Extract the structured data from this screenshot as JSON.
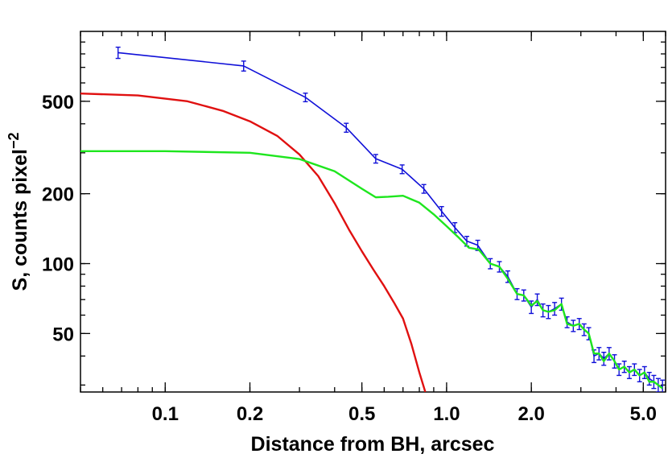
{
  "chart_data": {
    "type": "line",
    "xlabel": "Distance from BH, arcsec",
    "ylabel_main": "S, counts pixel",
    "ylabel_sup": "−2",
    "xscale": "log",
    "yscale": "log",
    "xlim": [
      0.05,
      6.0
    ],
    "ylim": [
      28,
      1000
    ],
    "grid": false,
    "xticks": [
      {
        "value": 0.1,
        "label": "0.1"
      },
      {
        "value": 0.2,
        "label": "0.2"
      },
      {
        "value": 0.5,
        "label": "0.5"
      },
      {
        "value": 1.0,
        "label": "1.0"
      },
      {
        "value": 2.0,
        "label": "2.0"
      },
      {
        "value": 5.0,
        "label": "5.0"
      }
    ],
    "yticks": [
      {
        "value": 50,
        "label": "50"
      },
      {
        "value": 100,
        "label": "100"
      },
      {
        "value": 200,
        "label": "200"
      },
      {
        "value": 500,
        "label": "500"
      }
    ],
    "series": [
      {
        "color": "#1010d8",
        "errorbars": true,
        "points": [
          [
            0.068,
            810,
            45
          ],
          [
            0.19,
            710,
            35
          ],
          [
            0.315,
            520,
            22
          ],
          [
            0.44,
            385,
            17
          ],
          [
            0.56,
            283,
            12
          ],
          [
            0.695,
            255,
            11
          ],
          [
            0.83,
            210,
            9
          ],
          [
            0.96,
            168,
            8
          ],
          [
            1.07,
            143,
            7
          ],
          [
            1.18,
            125,
            6
          ],
          [
            1.29,
            120,
            6
          ],
          [
            1.43,
            100,
            5
          ],
          [
            1.54,
            97,
            5
          ],
          [
            1.65,
            88,
            5
          ],
          [
            1.78,
            74,
            4
          ],
          [
            1.88,
            73,
            4
          ],
          [
            2.0,
            65,
            4
          ],
          [
            2.1,
            70,
            4
          ],
          [
            2.2,
            63,
            4
          ],
          [
            2.3,
            62,
            4
          ],
          [
            2.42,
            64,
            4
          ],
          [
            2.56,
            67,
            4
          ],
          [
            2.68,
            56,
            3
          ],
          [
            2.82,
            54,
            3
          ],
          [
            2.96,
            55,
            3
          ],
          [
            3.08,
            52,
            3
          ],
          [
            3.2,
            50,
            3
          ],
          [
            3.34,
            40,
            2.5
          ],
          [
            3.48,
            41,
            2.5
          ],
          [
            3.62,
            39,
            2.5
          ],
          [
            3.78,
            41,
            2.5
          ],
          [
            3.95,
            38,
            2.5
          ],
          [
            4.1,
            35,
            2
          ],
          [
            4.28,
            36,
            2
          ],
          [
            4.46,
            34,
            2
          ],
          [
            4.65,
            35,
            2
          ],
          [
            4.85,
            33,
            2
          ],
          [
            5.05,
            34,
            2
          ],
          [
            5.25,
            32,
            2
          ],
          [
            5.45,
            31,
            2
          ],
          [
            5.65,
            30,
            2
          ],
          [
            5.85,
            29.5,
            2
          ]
        ]
      },
      {
        "color": "#1ee61e",
        "points": [
          [
            0.05,
            305
          ],
          [
            0.1,
            305
          ],
          [
            0.2,
            300
          ],
          [
            0.3,
            282
          ],
          [
            0.4,
            250
          ],
          [
            0.5,
            210
          ],
          [
            0.56,
            193
          ],
          [
            0.62,
            194
          ],
          [
            0.7,
            196
          ],
          [
            0.8,
            183
          ],
          [
            0.9,
            163
          ],
          [
            1.0,
            145
          ],
          [
            1.1,
            130
          ],
          [
            1.2,
            117
          ],
          [
            1.3,
            115
          ],
          [
            1.43,
            100
          ],
          [
            1.54,
            97
          ],
          [
            1.65,
            86
          ],
          [
            1.78,
            74
          ],
          [
            1.88,
            73
          ],
          [
            2.0,
            66
          ],
          [
            2.1,
            69
          ],
          [
            2.2,
            63
          ],
          [
            2.3,
            62
          ],
          [
            2.42,
            63
          ],
          [
            2.56,
            67
          ],
          [
            2.68,
            55
          ],
          [
            2.82,
            54
          ],
          [
            2.96,
            55
          ],
          [
            3.08,
            52
          ],
          [
            3.2,
            50
          ],
          [
            3.34,
            41
          ],
          [
            3.48,
            41
          ],
          [
            3.62,
            38
          ],
          [
            3.78,
            41
          ],
          [
            3.95,
            38
          ],
          [
            4.1,
            35
          ],
          [
            4.28,
            36
          ],
          [
            4.46,
            34
          ],
          [
            4.65,
            35
          ],
          [
            4.85,
            33
          ],
          [
            5.05,
            34
          ],
          [
            5.25,
            31
          ],
          [
            5.45,
            31
          ],
          [
            5.65,
            30
          ],
          [
            5.85,
            29
          ]
        ]
      },
      {
        "color": "#e01010",
        "points": [
          [
            0.05,
            540
          ],
          [
            0.08,
            530
          ],
          [
            0.12,
            500
          ],
          [
            0.16,
            455
          ],
          [
            0.2,
            410
          ],
          [
            0.25,
            355
          ],
          [
            0.3,
            295
          ],
          [
            0.35,
            238
          ],
          [
            0.4,
            182
          ],
          [
            0.45,
            140
          ],
          [
            0.5,
            113
          ],
          [
            0.55,
            94
          ],
          [
            0.6,
            80
          ],
          [
            0.65,
            68
          ],
          [
            0.7,
            58
          ],
          [
            0.75,
            45
          ],
          [
            0.8,
            34
          ],
          [
            0.84,
            28
          ]
        ]
      }
    ]
  }
}
